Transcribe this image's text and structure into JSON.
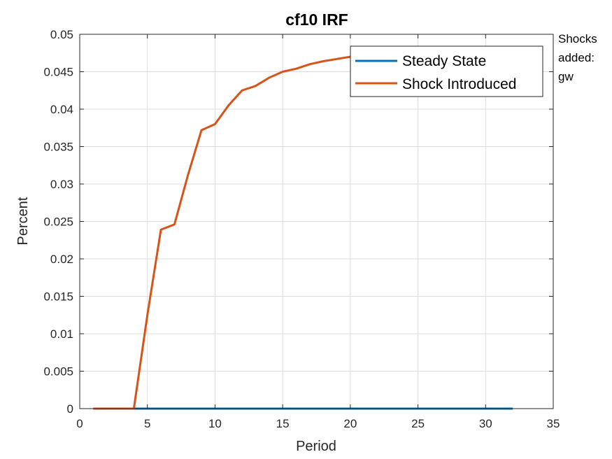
{
  "chart_data": {
    "type": "line",
    "title": "cf10 IRF",
    "xlabel": "Period",
    "ylabel": "Percent",
    "xlim": [
      0,
      35
    ],
    "ylim": [
      0,
      0.05
    ],
    "xticks": [
      "0",
      "5",
      "10",
      "15",
      "20",
      "25",
      "30",
      "35"
    ],
    "yticks": [
      "0",
      "0.005",
      "0.01",
      "0.015",
      "0.02",
      "0.025",
      "0.03",
      "0.035",
      "0.04",
      "0.045",
      "0.05"
    ],
    "grid": true,
    "legend_position": "top-right",
    "x": [
      1,
      2,
      3,
      4,
      5,
      6,
      7,
      8,
      9,
      10,
      11,
      12,
      13,
      14,
      15,
      16,
      17,
      18,
      19,
      20,
      21,
      22,
      23,
      24,
      25,
      26,
      27,
      28,
      29,
      30,
      31,
      32
    ],
    "series": [
      {
        "name": "Steady State",
        "color": "#0072BD",
        "values": [
          0,
          0,
          0,
          0,
          0,
          0,
          0,
          0,
          0,
          0,
          0,
          0,
          0,
          0,
          0,
          0,
          0,
          0,
          0,
          0,
          0,
          0,
          0,
          0,
          0,
          0,
          0,
          0,
          0,
          0,
          0,
          0
        ]
      },
      {
        "name": "Shock Introduced",
        "color": "#D95319",
        "values": [
          0,
          0,
          0,
          0,
          0.0125,
          0.0239,
          0.0246,
          0.0312,
          0.0372,
          0.038,
          0.0405,
          0.0425,
          0.0431,
          0.0442,
          0.045,
          0.0454,
          0.046,
          0.0464,
          0.0467,
          0.047,
          0.0473,
          0.0475,
          0.0477,
          0.0478,
          0.0479,
          0.048,
          0.0481,
          0.0481,
          0.0482,
          0.0482,
          0.0482,
          0.0482
        ]
      }
    ]
  },
  "annotation": {
    "lines": [
      "Shocks",
      "added:",
      "gw"
    ]
  }
}
